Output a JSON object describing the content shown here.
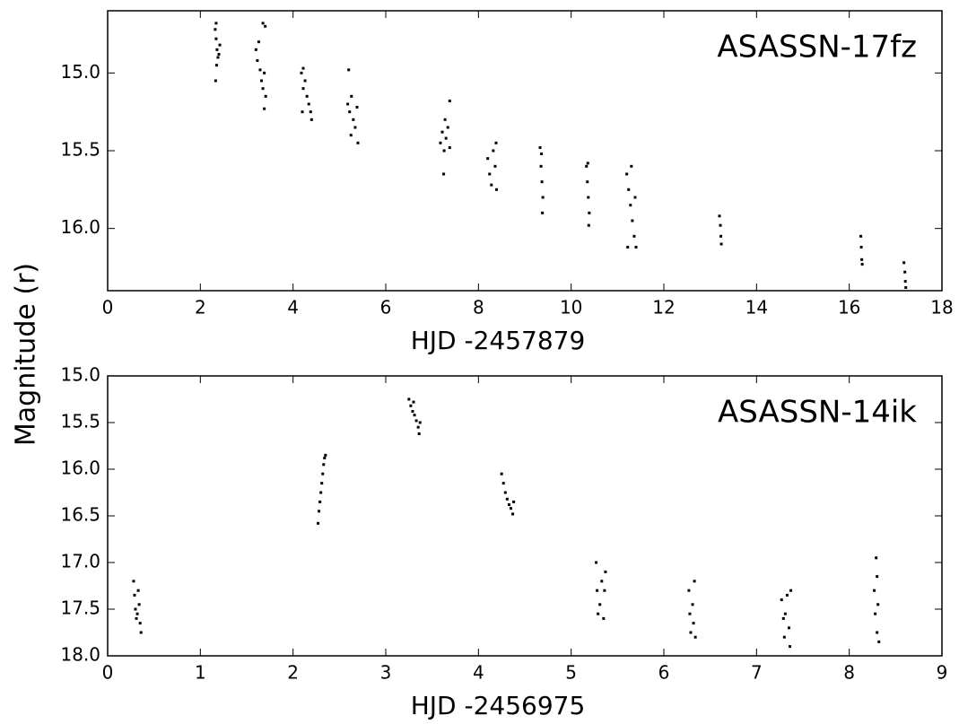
{
  "y_label": "Magnitude (r)",
  "chart_data": [
    {
      "type": "scatter",
      "annotation": "ASASSN-17fz",
      "x_label": "HJD -2457879",
      "color": "#000000",
      "xlim": [
        0,
        18
      ],
      "xticks": [
        0,
        2,
        4,
        6,
        8,
        10,
        12,
        14,
        16,
        18
      ],
      "ylim": [
        14.6,
        16.4
      ],
      "y_inverted": true,
      "yticks": [
        {
          "value": 15,
          "label": "15.0"
        },
        15.5,
        {
          "value": 16,
          "label": "16.0"
        }
      ],
      "x": [
        2.32,
        2.34,
        2.36,
        2.38,
        2.4,
        2.42,
        2.35,
        2.33,
        2.34,
        3.2,
        3.23,
        3.26,
        3.29,
        3.32,
        3.35,
        3.38,
        3.41,
        3.38,
        3.35,
        3.4,
        4.18,
        4.22,
        4.26,
        4.3,
        4.34,
        4.38,
        4.4,
        4.22,
        4.2,
        5.18,
        5.22,
        5.26,
        5.3,
        5.34,
        5.38,
        5.4,
        5.2,
        5.25,
        7.18,
        7.22,
        7.26,
        7.3,
        7.34,
        7.38,
        7.38,
        7.25,
        7.28,
        8.2,
        8.24,
        8.28,
        8.32,
        8.36,
        8.39,
        8.38,
        9.33,
        9.35,
        9.37,
        9.39,
        9.38,
        9.36,
        10.33,
        10.35,
        10.37,
        10.39,
        10.38,
        10.36,
        11.2,
        11.24,
        11.28,
        11.32,
        11.36,
        11.4,
        11.22,
        11.3,
        11.38,
        13.2,
        13.22,
        13.23,
        13.24,
        16.25,
        16.26,
        16.27,
        16.28,
        17.18,
        17.2,
        17.21,
        17.22
      ],
      "values": [
        14.72,
        14.78,
        14.85,
        14.9,
        14.88,
        14.82,
        14.95,
        15.05,
        14.68,
        14.85,
        14.92,
        14.8,
        14.98,
        15.05,
        15.1,
        15.0,
        15.15,
        15.23,
        14.68,
        14.7,
        15.0,
        15.1,
        15.05,
        15.15,
        15.2,
        15.25,
        15.3,
        14.97,
        15.25,
        15.2,
        15.25,
        15.15,
        15.3,
        15.35,
        15.22,
        15.45,
        14.98,
        15.4,
        15.45,
        15.38,
        15.5,
        15.42,
        15.35,
        15.48,
        15.18,
        15.65,
        15.3,
        15.55,
        15.65,
        15.72,
        15.5,
        15.6,
        15.75,
        15.45,
        15.48,
        15.6,
        15.7,
        15.8,
        15.9,
        15.52,
        15.6,
        15.7,
        15.8,
        15.9,
        15.98,
        15.58,
        15.65,
        15.75,
        15.85,
        15.95,
        16.05,
        16.12,
        16.12,
        15.6,
        15.8,
        15.92,
        15.98,
        16.05,
        16.1,
        16.05,
        16.12,
        16.2,
        16.23,
        16.22,
        16.28,
        16.34,
        16.38
      ]
    },
    {
      "type": "scatter",
      "annotation": "ASASSN-14ik",
      "x_label": "HJD -2456975",
      "color": "#000000",
      "xlim": [
        0,
        9
      ],
      "xticks": [
        0,
        1,
        2,
        3,
        4,
        5,
        6,
        7,
        8,
        9
      ],
      "ylim": [
        15,
        18
      ],
      "y_inverted": true,
      "yticks": [
        {
          "value": 15,
          "label": "15.0"
        },
        15.5,
        {
          "value": 16,
          "label": "16.0"
        },
        16.5,
        {
          "value": 17,
          "label": "17.0"
        },
        17.5,
        {
          "value": 18,
          "label": "18.0"
        }
      ],
      "x": [
        0.28,
        0.29,
        0.3,
        0.31,
        0.33,
        0.34,
        0.35,
        0.36,
        0.32,
        2.27,
        2.28,
        2.29,
        2.3,
        2.31,
        2.32,
        2.33,
        2.34,
        2.35,
        3.25,
        3.27,
        3.29,
        3.31,
        3.33,
        3.35,
        3.36,
        3.37,
        3.3,
        4.25,
        4.27,
        4.29,
        4.31,
        4.33,
        4.35,
        4.37,
        4.38,
        5.27,
        5.28,
        5.29,
        5.31,
        5.33,
        5.35,
        5.36,
        5.37,
        6.27,
        6.28,
        6.29,
        6.31,
        6.32,
        6.33,
        6.34,
        7.27,
        7.29,
        7.3,
        7.31,
        7.33,
        7.35,
        7.36,
        7.37,
        8.27,
        8.28,
        8.29,
        8.3,
        8.31,
        8.32,
        8.3
      ],
      "values": [
        17.2,
        17.35,
        17.5,
        17.6,
        17.3,
        17.45,
        17.65,
        17.75,
        17.55,
        16.58,
        16.45,
        16.35,
        16.25,
        16.15,
        16.05,
        15.95,
        15.88,
        15.85,
        15.25,
        15.32,
        15.38,
        15.42,
        15.48,
        15.55,
        15.62,
        15.5,
        15.28,
        16.05,
        16.15,
        16.25,
        16.32,
        16.38,
        16.42,
        16.48,
        16.35,
        17.0,
        17.3,
        17.55,
        17.45,
        17.2,
        17.6,
        17.3,
        17.1,
        17.3,
        17.55,
        17.75,
        17.45,
        17.65,
        17.2,
        17.8,
        17.4,
        17.6,
        17.8,
        17.55,
        17.35,
        17.7,
        17.9,
        17.3,
        17.3,
        17.55,
        16.95,
        17.75,
        17.45,
        17.85,
        17.15
      ]
    }
  ]
}
